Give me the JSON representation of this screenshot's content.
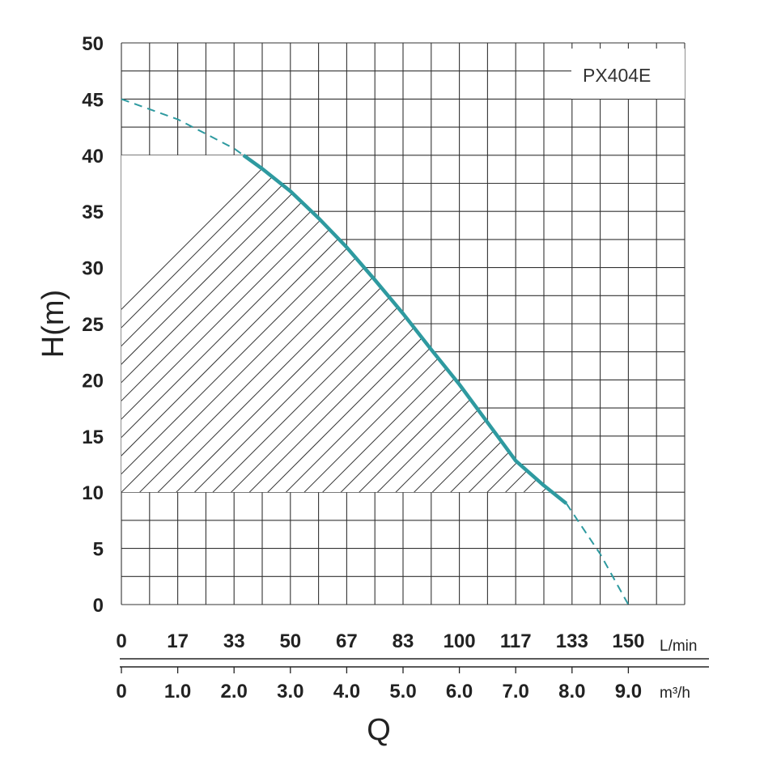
{
  "chart_data": {
    "type": "line",
    "model_label": "PX404E",
    "ylabel": "H(m)",
    "xlabel": "Q",
    "ylim": [
      0,
      50
    ],
    "yticks": [
      "0",
      "5",
      "10",
      "15",
      "20",
      "25",
      "30",
      "35",
      "40",
      "45",
      "50"
    ],
    "x_axis_lpm": {
      "unit": "L/min",
      "ticks": [
        "0",
        "17",
        "33",
        "50",
        "67",
        "83",
        "100",
        "117",
        "133",
        "150"
      ]
    },
    "x_axis_m3h": {
      "unit": "m³/h",
      "ticks": [
        "0",
        "1.0",
        "2.0",
        "3.0",
        "4.0",
        "5.0",
        "6.0",
        "7.0",
        "8.0",
        "9.0"
      ]
    },
    "xlim_m3h": [
      0,
      10
    ],
    "grid": true,
    "curve": {
      "x_m3h": [
        0,
        1,
        2,
        2.5,
        3,
        3.5,
        4,
        4.5,
        5,
        5.5,
        6,
        6.5,
        7,
        7.5,
        7.9,
        8.5,
        9
      ],
      "h_m": [
        45,
        43.2,
        40.6,
        38.8,
        36.8,
        34.4,
        31.8,
        28.9,
        25.9,
        22.7,
        19.6,
        16.2,
        12.8,
        10.6,
        9.0,
        4.5,
        0
      ]
    },
    "recommended_range": {
      "x_m3h": [
        0,
        7.9
      ],
      "h_m": [
        10,
        40
      ]
    },
    "colors": {
      "curve": "#2e9aa0",
      "grid": "#333333",
      "hatch": "#333333"
    }
  }
}
